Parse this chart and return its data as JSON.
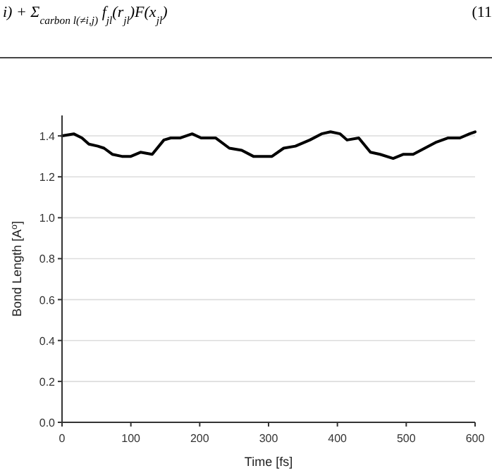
{
  "chart_data": {
    "type": "line",
    "xlabel": "Time [fs]",
    "ylabel": "Bond Length [A$^{o}$]",
    "annotations": [
      "i) + Σ$_{carbon l(≠i,j)}$ f$_{jl}$(r$_{jl}$)F(x$_{jl}$)",
      "(11"
    ],
    "x": [
      0,
      17,
      29,
      39,
      52,
      61,
      73,
      87,
      100,
      114,
      131,
      148,
      158,
      172,
      189,
      202,
      223,
      243,
      261,
      278,
      291,
      305,
      322,
      339,
      360,
      377,
      390,
      404,
      414,
      431,
      448,
      462,
      481,
      496,
      510,
      527,
      544,
      561,
      578,
      592,
      600
    ],
    "series": [
      {
        "color": "#000000",
        "values": [
          1.4,
          1.41,
          1.39,
          1.36,
          1.35,
          1.34,
          1.31,
          1.3,
          1.3,
          1.32,
          1.31,
          1.38,
          1.39,
          1.39,
          1.41,
          1.39,
          1.39,
          1.34,
          1.33,
          1.3,
          1.3,
          1.3,
          1.34,
          1.35,
          1.38,
          1.41,
          1.42,
          1.41,
          1.38,
          1.39,
          1.32,
          1.31,
          1.29,
          1.31,
          1.31,
          1.34,
          1.37,
          1.39,
          1.39,
          1.41,
          1.42
        ]
      }
    ],
    "xlim": [
      0,
      600
    ],
    "xticks": [
      0,
      100,
      200,
      300,
      400,
      500,
      600
    ],
    "ylim": [
      0,
      1.5
    ],
    "yticks": [
      {
        "value": 0,
        "label": "0.0"
      },
      {
        "value": 0.2,
        "label": "0.2"
      },
      {
        "value": 0.4,
        "label": "0.4"
      },
      {
        "value": 0.6,
        "label": "0.6"
      },
      {
        "value": 0.8,
        "label": "0.8"
      },
      {
        "value": 1,
        "label": "1.0"
      },
      {
        "value": 1.2,
        "label": "1.2"
      },
      {
        "value": 1.4,
        "label": "1.4"
      }
    ],
    "grid": "y",
    "line_style": "solid"
  }
}
